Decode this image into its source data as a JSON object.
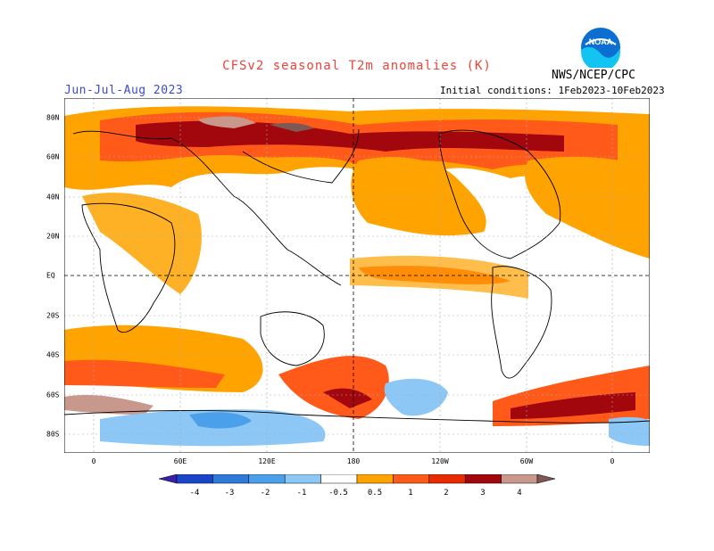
{
  "title": "CFSv2 seasonal T2m anomalies (K)",
  "season": "Jun-Jul-Aug 2023",
  "initial_conditions": "Initial conditions: 1Feb2023-10Feb2023",
  "agency": "NWS/NCEP/CPC",
  "logo_text": "NOAA",
  "lon_ticks": [
    "0",
    "60E",
    "120E",
    "180",
    "120W",
    "60W",
    "0"
  ],
  "lat_ticks": [
    "80N",
    "60N",
    "40N",
    "20N",
    "EQ",
    "20S",
    "40S",
    "60S",
    "80S"
  ],
  "colorbar": {
    "labels": [
      "-4",
      "-3",
      "-2",
      "-1",
      "-0.5",
      "0.5",
      "1",
      "2",
      "3",
      "4"
    ],
    "colors": [
      "#3a1fa8",
      "#1b45c8",
      "#2f79d8",
      "#4aa0ea",
      "#8cc7f6",
      "#ffffff",
      "#ffa300",
      "#ff5a1a",
      "#e82c00",
      "#a1070d",
      "#c9988c",
      "#7f5753"
    ]
  },
  "palette": {
    "title": "#e8453c",
    "season": "#3b4bd1"
  }
}
